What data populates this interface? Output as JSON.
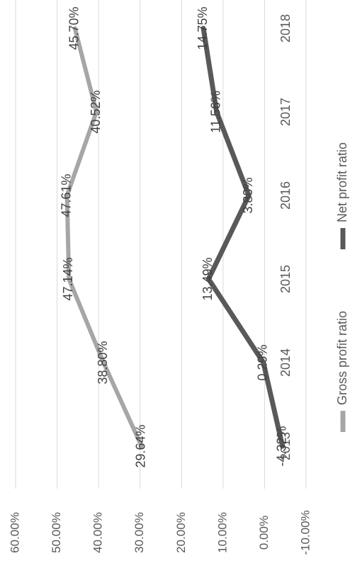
{
  "chart_data": {
    "type": "line",
    "orientation": "rotated-90-clockwise",
    "categories": [
      "2013",
      "2014",
      "2015",
      "2016",
      "2017",
      "2018"
    ],
    "series": [
      {
        "name": "Gross profit ratio",
        "values": [
          29.64,
          38.8,
          47.14,
          47.61,
          40.52,
          45.7
        ],
        "labels": [
          "29.64%",
          "38.80%",
          "47.14%",
          "47.61%",
          "40.52%",
          "45.70%"
        ],
        "color": "#a6a6a6"
      },
      {
        "name": "Net profit ratio",
        "values": [
          -4.32,
          0.29,
          13.49,
          3.8,
          11.56,
          14.75
        ],
        "labels": [
          "-4.32%",
          "0.29%",
          "13.49%",
          "3.80%",
          "11.56%",
          "14.75%"
        ],
        "color": "#595959"
      }
    ],
    "y_ticks": [
      "-10.00%",
      "0.00%",
      "10.00%",
      "20.00%",
      "30.00%",
      "40.00%",
      "50.00%",
      "60.00%"
    ],
    "ylim": [
      -10,
      60
    ],
    "grid": true,
    "legend": "bottom"
  }
}
